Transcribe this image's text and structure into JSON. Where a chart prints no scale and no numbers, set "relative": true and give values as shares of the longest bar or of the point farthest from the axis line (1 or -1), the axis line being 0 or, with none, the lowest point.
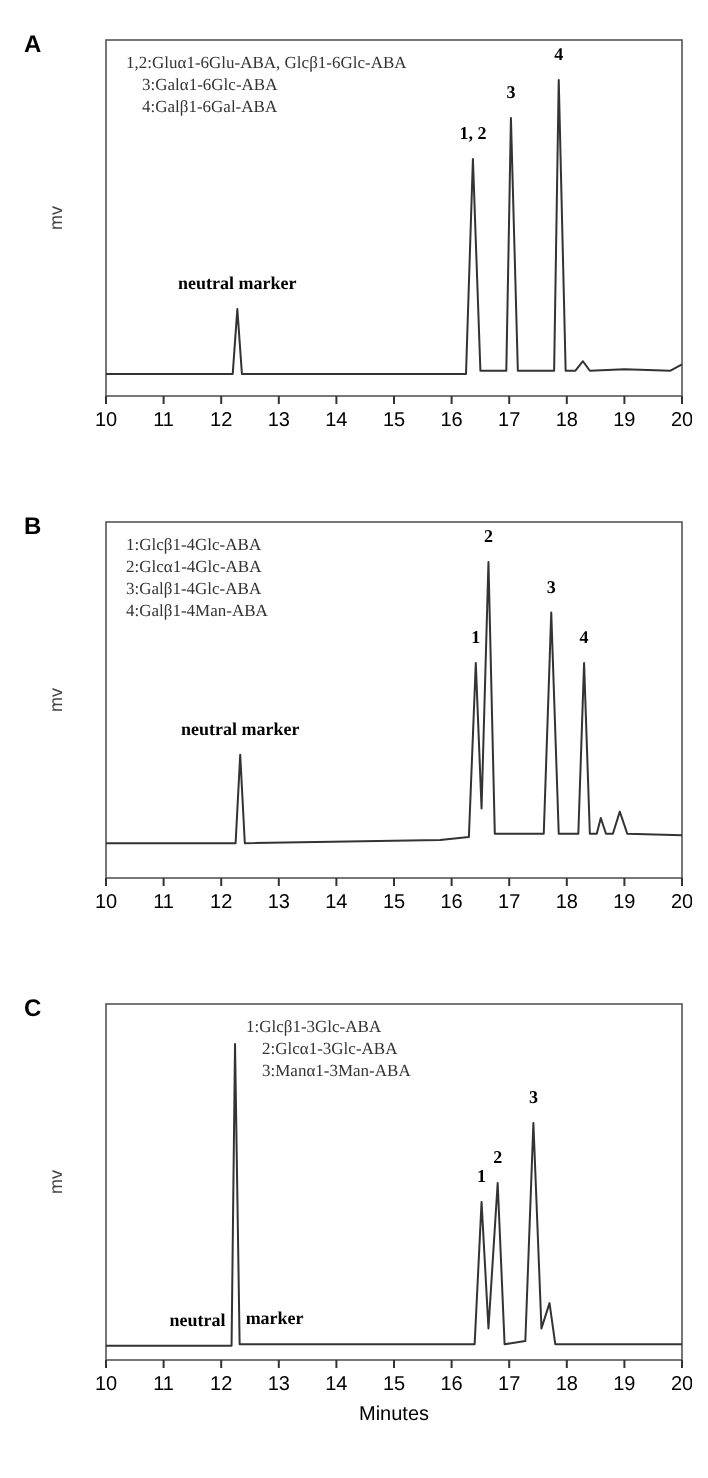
{
  "chart_data": [
    {
      "type": "line",
      "title": "A",
      "ylabel": "mv",
      "relative": true,
      "xlim": [
        10,
        20
      ],
      "xticks": [
        10,
        11,
        12,
        13,
        14,
        15,
        16,
        17,
        18,
        19,
        20
      ],
      "series": [
        {
          "color": "#333333",
          "x": [
            10,
            12.2,
            12.28,
            12.36,
            16.25,
            16.37,
            16.5,
            16.95,
            17.03,
            17.15,
            17.78,
            17.86,
            17.98,
            18.15,
            18.28,
            18.4,
            19.0,
            19.8,
            20
          ],
          "values": [
            0.07,
            0.07,
            0.275,
            0.07,
            0.07,
            0.75,
            0.08,
            0.08,
            0.88,
            0.08,
            0.08,
            1,
            0.08,
            0.08,
            0.11,
            0.08,
            0.085,
            0.08,
            0.1
          ]
        }
      ],
      "annotations": [
        "1,2:Gluα1-6Glu-ABA, Glcβ1-6Glc-ABA",
        "3:Galα1-6Glc-ABA",
        "4:Galβ1-6Gal-ABA",
        {
          "text": "neutral marker",
          "x": 12.28,
          "y": 0.275
        },
        {
          "text": "1, 2",
          "x": 16.37,
          "y": 0.75
        },
        {
          "text": "3",
          "x": 17.03,
          "y": 0.88
        },
        {
          "text": "4",
          "x": 17.86,
          "y": 1
        }
      ]
    },
    {
      "type": "line",
      "title": "B",
      "ylabel": "mv",
      "relative": true,
      "xlim": [
        10,
        20
      ],
      "xticks": [
        10,
        11,
        12,
        13,
        14,
        15,
        16,
        17,
        18,
        19,
        20
      ],
      "series": [
        {
          "color": "#333333",
          "x": [
            10,
            12.25,
            12.33,
            12.41,
            15.8,
            16.3,
            16.42,
            16.52,
            16.64,
            16.75,
            17.6,
            17.73,
            17.86,
            18.2,
            18.3,
            18.4,
            18.52,
            18.59,
            18.68,
            18.8,
            18.92,
            19.05,
            20
          ],
          "values": [
            0.11,
            0.11,
            0.39,
            0.11,
            0.12,
            0.13,
            0.68,
            0.22,
            1,
            0.14,
            0.14,
            0.84,
            0.14,
            0.14,
            0.68,
            0.14,
            0.14,
            0.19,
            0.14,
            0.14,
            0.21,
            0.14,
            0.135
          ]
        }
      ],
      "annotations": [
        "1:Glcβ1-4Glc-ABA",
        "2:Glcα1-4Glc-ABA",
        "3:Galβ1-4Glc-ABA",
        "4:Galβ1-4Man-ABA",
        {
          "text": "neutral marker",
          "x": 12.33,
          "y": 0.39
        },
        {
          "text": "1",
          "x": 16.42,
          "y": 0.68
        },
        {
          "text": "2",
          "x": 16.64,
          "y": 1
        },
        {
          "text": "3",
          "x": 17.73,
          "y": 0.84
        },
        {
          "text": "4",
          "x": 18.3,
          "y": 0.68
        }
      ]
    },
    {
      "type": "line",
      "title": "C",
      "ylabel": "mv",
      "xlabel": "Minutes",
      "relative": true,
      "xlim": [
        10,
        20
      ],
      "xticks": [
        10,
        11,
        12,
        13,
        14,
        15,
        16,
        17,
        18,
        19,
        20
      ],
      "series": [
        {
          "color": "#333333",
          "x": [
            10,
            12.18,
            12.24,
            12.32,
            16.4,
            16.52,
            16.64,
            16.8,
            16.92,
            17.28,
            17.42,
            17.56,
            17.7,
            17.8,
            20
          ],
          "values": [
            0.045,
            0.045,
            1,
            0.05,
            0.05,
            0.5,
            0.1,
            0.56,
            0.05,
            0.06,
            0.75,
            0.1,
            0.18,
            0.05,
            0.05
          ]
        }
      ],
      "annotations": [
        "1:Glcβ1-3Glc-ABA",
        "2:Glcα1-3Glc-ABA",
        "3:Manα1-3Man-ABA",
        {
          "text": "neutral",
          "x": 12.18,
          "y": 0.045
        },
        {
          "text": "marker",
          "x": 12.32,
          "y": 0.05
        },
        {
          "text": "1",
          "x": 16.52,
          "y": 0.5
        },
        {
          "text": "2",
          "x": 16.8,
          "y": 0.56
        },
        {
          "text": "3",
          "x": 17.42,
          "y": 0.75
        }
      ]
    }
  ]
}
